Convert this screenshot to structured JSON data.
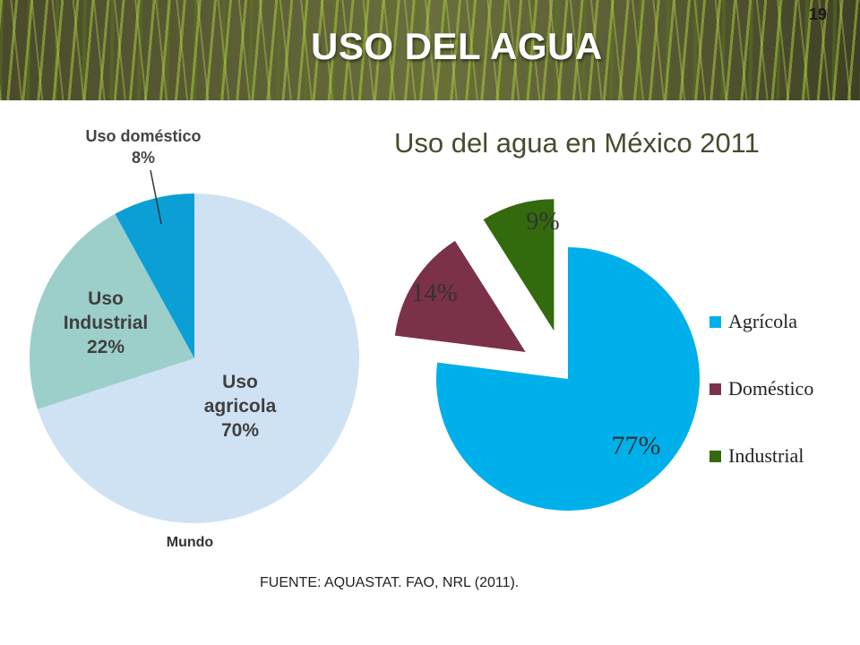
{
  "slide": {
    "title": "USO DEL AGUA",
    "number": "19",
    "source": "FUENTE: AQUASTAT. FAO, NRL (2011)."
  },
  "chart_data": [
    {
      "type": "pie",
      "title": "",
      "caption": "Mundo",
      "slices": [
        {
          "label": "Uso agricola",
          "value": 70,
          "value_label": "70%",
          "color": "#cfe2f3"
        },
        {
          "label": "Uso Industrial",
          "value": 22,
          "value_label": "22%",
          "color": "#9ccfc9"
        },
        {
          "label": "Uso doméstico",
          "value": 8,
          "value_label": "8%",
          "color": "#0b9fd6"
        }
      ]
    },
    {
      "type": "pie",
      "title": "Uso del agua en México 2011",
      "legend_position": "right",
      "slices": [
        {
          "label": "Agrícola",
          "value": 77,
          "value_label": "77%",
          "color": "#00b0ea",
          "exploded": false
        },
        {
          "label": "Doméstico",
          "value": 14,
          "value_label": "14%",
          "color": "#7b3148",
          "exploded": true
        },
        {
          "label": "Industrial",
          "value": 9,
          "value_label": "9%",
          "color": "#336a0d",
          "exploded": true
        }
      ]
    }
  ]
}
